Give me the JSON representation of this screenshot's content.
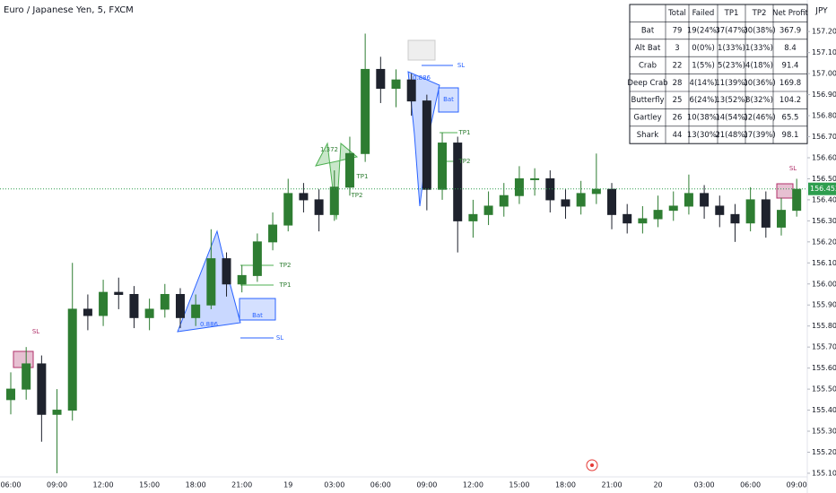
{
  "header": {
    "title": "Euro / Japanese Yen, 5, FXCM",
    "currency": "JPY"
  },
  "chart_data": {
    "type": "candlestick",
    "categories": [
      "06:00",
      null,
      null,
      "09:00",
      null,
      null,
      "12:00",
      null,
      null,
      "15:00",
      null,
      null,
      "18:00",
      null,
      null,
      "21:00",
      null,
      null,
      "19",
      null,
      null,
      "03:00",
      null,
      null,
      "06:00",
      null,
      null,
      "09:00",
      null,
      null,
      "12:00",
      null,
      null,
      "15:00",
      null,
      null,
      "18:00",
      null,
      null,
      "21:00",
      null,
      null,
      "20",
      null,
      null,
      "03:00",
      null,
      null,
      "06:00",
      null,
      null,
      "09:00"
    ],
    "open": [
      155.45,
      155.5,
      155.62,
      155.38,
      155.4,
      155.88,
      155.85,
      155.96,
      155.95,
      155.84,
      155.88,
      155.95,
      155.84,
      155.9,
      156.12,
      156.0,
      156.04,
      156.2,
      156.28,
      156.43,
      156.4,
      156.33,
      156.46,
      156.62,
      157.02,
      156.93,
      156.97,
      156.87,
      156.45,
      156.67,
      156.3,
      156.33,
      156.37,
      156.42,
      156.5,
      156.5,
      156.4,
      156.37,
      156.43,
      156.45,
      156.33,
      156.29,
      156.31,
      156.35,
      156.37,
      156.43,
      156.37,
      156.33,
      156.29,
      156.4,
      156.27,
      156.35
    ],
    "high": [
      155.58,
      155.7,
      155.66,
      155.5,
      156.1,
      155.95,
      156.02,
      156.03,
      155.99,
      155.93,
      156.0,
      155.98,
      155.95,
      156.26,
      156.15,
      156.09,
      156.24,
      156.34,
      156.5,
      156.48,
      156.45,
      156.54,
      156.7,
      157.19,
      157.08,
      157.02,
      157.0,
      156.9,
      156.72,
      156.7,
      156.4,
      156.44,
      156.48,
      156.56,
      156.55,
      156.54,
      156.45,
      156.49,
      156.62,
      156.48,
      156.38,
      156.37,
      156.42,
      156.44,
      156.52,
      156.47,
      156.42,
      156.38,
      156.46,
      156.44,
      156.41,
      156.5
    ],
    "low": [
      155.38,
      155.45,
      155.25,
      155.1,
      155.35,
      155.78,
      155.8,
      155.88,
      155.79,
      155.78,
      155.84,
      155.79,
      155.8,
      155.88,
      155.94,
      155.96,
      156.01,
      156.16,
      156.25,
      156.34,
      156.25,
      156.3,
      156.42,
      156.58,
      156.86,
      156.84,
      156.8,
      156.35,
      156.4,
      156.15,
      156.22,
      156.28,
      156.32,
      156.38,
      156.42,
      156.34,
      156.31,
      156.33,
      156.38,
      156.26,
      156.24,
      156.24,
      156.27,
      156.3,
      156.33,
      156.31,
      156.27,
      156.2,
      156.25,
      156.22,
      156.23,
      156.32
    ],
    "close": [
      155.5,
      155.62,
      155.38,
      155.4,
      155.88,
      155.85,
      155.96,
      155.95,
      155.84,
      155.88,
      155.95,
      155.84,
      155.9,
      156.12,
      156.0,
      156.04,
      156.2,
      156.28,
      156.43,
      156.4,
      156.33,
      156.46,
      156.62,
      157.02,
      156.93,
      156.97,
      156.87,
      156.45,
      156.67,
      156.3,
      156.33,
      156.37,
      156.42,
      156.5,
      156.5,
      156.4,
      156.37,
      156.43,
      156.45,
      156.33,
      156.29,
      156.31,
      156.35,
      156.37,
      156.43,
      156.37,
      156.33,
      156.29,
      156.4,
      156.27,
      156.35,
      156.45
    ],
    "up_color": "#2e7d32",
    "down_color": "#1e222d",
    "ylim": [
      155.07,
      157.35
    ],
    "yticks": [
      {
        "value": 155.1,
        "label": "155.100"
      },
      {
        "value": 155.2,
        "label": "155.200"
      },
      {
        "value": 155.3,
        "label": "155.300"
      },
      {
        "value": 155.4,
        "label": "155.400"
      },
      {
        "value": 155.5,
        "label": "155.500"
      },
      {
        "value": 155.6,
        "label": "155.600"
      },
      {
        "value": 155.7,
        "label": "155.700"
      },
      {
        "value": 155.8,
        "label": "155.800"
      },
      {
        "value": 155.9,
        "label": "155.900"
      },
      {
        "value": 156.0,
        "label": "156.000"
      },
      {
        "value": 156.1,
        "label": "156.100"
      },
      {
        "value": 156.2,
        "label": "156.200"
      },
      {
        "value": 156.3,
        "label": "156.300"
      },
      {
        "value": 156.4,
        "label": "156.400"
      },
      {
        "value": 156.5,
        "label": "156.500"
      },
      {
        "value": 156.6,
        "label": "156.600"
      },
      {
        "value": 156.7,
        "label": "156.700"
      },
      {
        "value": 156.8,
        "label": "156.800"
      },
      {
        "value": 156.9,
        "label": "156.900"
      },
      {
        "value": 157.0,
        "label": "157.000"
      },
      {
        "value": 157.1,
        "label": "157.100"
      },
      {
        "value": 157.2,
        "label": "157.200"
      }
    ],
    "grid": false,
    "last_price": 156.452,
    "last_price_color": "#2e9e4f"
  },
  "annotations": [
    "Bat",
    "SL",
    "TP1",
    "TP2",
    "Bat",
    "SL",
    "TP1",
    "TP2",
    "TP1",
    "TP2",
    "SL",
    "SL",
    "0.886",
    "0.886",
    "1.372"
  ],
  "table": {
    "header": [
      "",
      "Total",
      "Failed",
      "TP1",
      "TP2",
      "Net Profit"
    ],
    "rows": [
      [
        "Bat",
        79,
        "19(24%)",
        "37(47%)",
        "30(38%)",
        367.9
      ],
      [
        "Alt Bat",
        3,
        "0(0%)",
        "1(33%)",
        "1(33%)",
        8.4
      ],
      [
        "Crab",
        22,
        "1(5%)",
        "5(23%)",
        "4(18%)",
        91.4
      ],
      [
        "Deep Crab",
        28,
        "4(14%)",
        "11(39%)",
        "10(36%)",
        169.8
      ],
      [
        "Butterfly",
        25,
        "6(24%)",
        "13(52%)",
        "8(32%)",
        104.2
      ],
      [
        "Gartley",
        26,
        "10(38%)",
        "14(54%)",
        "12(46%)",
        65.5
      ],
      [
        "Shark",
        44,
        "13(30%)",
        "21(48%)",
        "17(39%)",
        98.1
      ]
    ]
  }
}
